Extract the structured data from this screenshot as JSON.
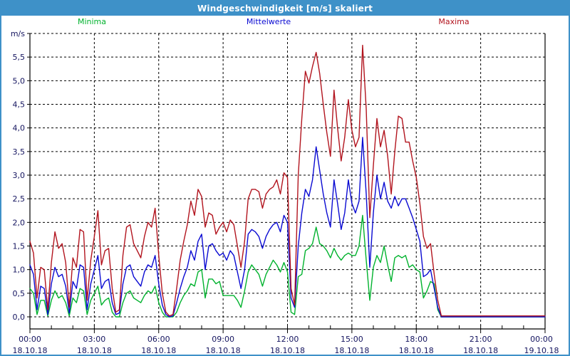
{
  "window": {
    "title": "Windgeschwindigkeit [m/s] skaliert"
  },
  "colors": {
    "titlebar": "#3e91c8",
    "window_border": "#3e91c8",
    "grid": "#000000",
    "axis": "#000000",
    "tick_label": "#14145f",
    "minima": "#00b22d",
    "mittelwerte": "#0a0ad2",
    "maxima": "#b2141e"
  },
  "chart_data": {
    "type": "line",
    "title": "Windgeschwindigkeit [m/s] skaliert",
    "ylabel": "m/s",
    "ylim": [
      0,
      6
    ],
    "ytick_step": 0.5,
    "y_decimal_separator": ",",
    "grid": "dashed",
    "legend_position": "top",
    "x_start_hour": 0,
    "x_end_hour": 24,
    "sample_interval_minutes": 10,
    "xticks": [
      {
        "time": "00:00",
        "date": "18.10.18"
      },
      {
        "time": "03:00",
        "date": "18.10.18"
      },
      {
        "time": "06:00",
        "date": "18.10.18"
      },
      {
        "time": "09:00",
        "date": "18.10.18"
      },
      {
        "time": "12:00",
        "date": "18.10.18"
      },
      {
        "time": "15:00",
        "date": "18.10.18"
      },
      {
        "time": "18:00",
        "date": "18.10.18"
      },
      {
        "time": "21:00",
        "date": "18.10.18"
      },
      {
        "time": "00:00",
        "date": "19.10.18"
      }
    ],
    "series": [
      {
        "name": "Minima",
        "color": "#00b22d",
        "values": [
          0.6,
          0.5,
          0.05,
          0.35,
          0.35,
          0.02,
          0.35,
          0.55,
          0.4,
          0.45,
          0.3,
          0.02,
          0.4,
          0.3,
          0.6,
          0.55,
          0.05,
          0.35,
          0.5,
          0.65,
          0.25,
          0.35,
          0.4,
          0.1,
          0.0,
          0.0,
          0.3,
          0.5,
          0.55,
          0.4,
          0.35,
          0.3,
          0.45,
          0.55,
          0.5,
          0.65,
          0.3,
          0.1,
          0.0,
          0.0,
          0.0,
          0.1,
          0.3,
          0.45,
          0.55,
          0.7,
          0.65,
          0.95,
          1.0,
          0.4,
          0.8,
          0.8,
          0.7,
          0.75,
          0.45,
          0.45,
          0.45,
          0.45,
          0.35,
          0.2,
          0.55,
          0.95,
          1.1,
          1.0,
          0.9,
          0.65,
          0.9,
          1.05,
          1.2,
          1.1,
          0.95,
          1.15,
          0.95,
          0.1,
          0.05,
          0.85,
          0.9,
          1.4,
          1.45,
          1.55,
          1.9,
          1.55,
          1.5,
          1.4,
          1.25,
          1.45,
          1.3,
          1.2,
          1.3,
          1.35,
          1.3,
          1.3,
          1.5,
          2.15,
          1.2,
          0.35,
          1.05,
          1.3,
          1.15,
          1.5,
          1.1,
          0.75,
          1.25,
          1.3,
          1.25,
          1.3,
          1.05,
          1.1,
          1.0,
          0.95,
          0.4,
          0.55,
          0.75,
          0.7,
          0.15,
          0.0,
          0.0,
          0.0,
          0.0,
          0.0,
          0.0,
          0.0,
          0.0,
          0.0,
          0.0,
          0.0,
          0.0,
          0.0,
          0.0,
          0.0,
          0.0,
          0.0,
          0.0,
          0.0,
          0.0,
          0.0,
          0.0,
          0.0,
          0.0,
          0.0,
          0.0,
          0.0,
          0.0,
          0.0,
          0.0
        ]
      },
      {
        "name": "Mittelwerte",
        "color": "#0a0ad2",
        "values": [
          1.1,
          0.9,
          0.15,
          0.65,
          0.6,
          0.05,
          0.7,
          1.05,
          0.85,
          0.9,
          0.65,
          0.08,
          0.75,
          0.6,
          1.1,
          1.05,
          0.15,
          0.7,
          1.0,
          1.3,
          0.6,
          0.75,
          0.8,
          0.3,
          0.05,
          0.08,
          0.7,
          1.05,
          1.1,
          0.85,
          0.75,
          0.65,
          0.95,
          1.1,
          1.05,
          1.3,
          0.7,
          0.25,
          0.05,
          0.0,
          0.02,
          0.3,
          0.6,
          0.85,
          1.05,
          1.4,
          1.2,
          1.6,
          1.75,
          1.0,
          1.5,
          1.55,
          1.4,
          1.3,
          1.35,
          1.2,
          1.4,
          1.3,
          0.95,
          0.6,
          1.0,
          1.75,
          1.85,
          1.8,
          1.7,
          1.45,
          1.7,
          1.85,
          1.95,
          2.0,
          1.8,
          2.15,
          2.0,
          0.4,
          0.2,
          1.5,
          2.2,
          2.7,
          2.55,
          2.9,
          3.6,
          3.1,
          2.6,
          2.2,
          1.9,
          2.9,
          2.4,
          1.85,
          2.2,
          2.9,
          2.4,
          2.2,
          2.45,
          3.8,
          2.6,
          1.05,
          2.2,
          3.0,
          2.5,
          2.85,
          2.45,
          2.3,
          2.55,
          2.35,
          2.5,
          2.5,
          2.3,
          2.1,
          1.85,
          1.6,
          0.85,
          0.9,
          1.0,
          0.6,
          0.2,
          0.0,
          0.0,
          0.0,
          0.0,
          0.0,
          0.0,
          0.0,
          0.0,
          0.0,
          0.0,
          0.0,
          0.0,
          0.0,
          0.0,
          0.0,
          0.0,
          0.0,
          0.0,
          0.0,
          0.0,
          0.0,
          0.0,
          0.0,
          0.0,
          0.0,
          0.0,
          0.0,
          0.0,
          0.0,
          0.0
        ]
      },
      {
        "name": "Maxima",
        "color": "#b2141e",
        "values": [
          1.6,
          1.35,
          0.4,
          1.05,
          1.0,
          0.15,
          1.15,
          1.8,
          1.45,
          1.55,
          1.15,
          0.2,
          1.25,
          1.05,
          1.85,
          1.8,
          0.35,
          1.2,
          1.7,
          2.25,
          1.1,
          1.4,
          1.45,
          0.6,
          0.1,
          0.15,
          1.3,
          1.9,
          1.95,
          1.55,
          1.4,
          1.25,
          1.7,
          2.0,
          1.9,
          2.3,
          1.3,
          0.5,
          0.1,
          0.02,
          0.05,
          0.6,
          1.2,
          1.6,
          1.95,
          2.45,
          2.15,
          2.7,
          2.55,
          1.9,
          2.2,
          2.15,
          1.75,
          1.9,
          2.0,
          1.8,
          2.05,
          1.95,
          1.5,
          1.05,
          1.6,
          2.5,
          2.7,
          2.7,
          2.65,
          2.3,
          2.6,
          2.7,
          2.75,
          2.9,
          2.6,
          3.05,
          2.95,
          0.6,
          0.25,
          3.0,
          4.2,
          5.2,
          4.95,
          5.3,
          5.6,
          5.15,
          4.5,
          3.9,
          3.4,
          4.8,
          4.0,
          3.3,
          3.8,
          4.6,
          3.95,
          3.6,
          3.8,
          5.75,
          4.4,
          2.1,
          3.2,
          4.2,
          3.6,
          3.95,
          3.4,
          2.6,
          3.5,
          4.25,
          4.2,
          3.7,
          3.7,
          3.3,
          2.95,
          2.4,
          1.7,
          1.45,
          1.55,
          0.9,
          0.35,
          0.02,
          0.02,
          0.02,
          0.02,
          0.02,
          0.02,
          0.02,
          0.02,
          0.02,
          0.02,
          0.02,
          0.02,
          0.02,
          0.02,
          0.02,
          0.02,
          0.02,
          0.02,
          0.02,
          0.02,
          0.02,
          0.02,
          0.02,
          0.02,
          0.02,
          0.02,
          0.02,
          0.02,
          0.02,
          0.02
        ]
      }
    ]
  }
}
